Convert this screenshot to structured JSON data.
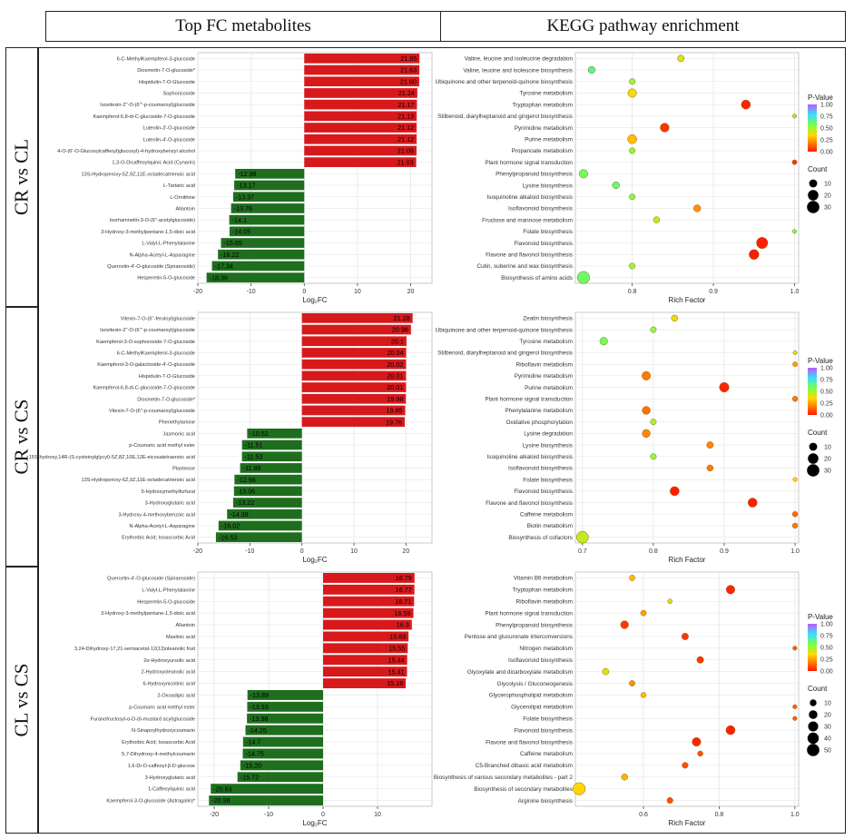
{
  "headers": {
    "left": "Top FC metabolites",
    "right": "KEGG pathway enrichment"
  },
  "rows": [
    "CR vs CL",
    "CR vs CS",
    "CL vs CS"
  ],
  "colors": {
    "up": "#d7191c",
    "down": "#1e6e1e",
    "grid": "#e6e6e6",
    "scale_low": "#ff1a00",
    "scale_mid1": "#ffd700",
    "scale_mid2": "#7fff3f",
    "scale_mid3": "#38e0ff",
    "scale_high": "#b55cff"
  },
  "chart_data": [
    {
      "type": "bar",
      "id": "fc-cr-cl",
      "orientation": "horizontal",
      "xlabel": "Log₂FC",
      "xlim": [
        -20,
        24
      ],
      "xticks": [
        -20,
        -10,
        0,
        10,
        20
      ],
      "categories": [
        "6-C-MethylKaempferol-3-glucoside",
        "Diosmetin-7-O-glucoside*",
        "Hispidulin-7-O-Glucoside",
        "Sophoricoside",
        "Isovitexin-2''-O-(6'''-p-coumaroyl)glucoside",
        "Kaempferol-6,8-di-C-glucoside-7-O-glucoside",
        "Luteolin-3'-O-glucoside",
        "Luteolin-4'-O-glucoside",
        "4-O-(6'-O-Glucosylcaffeoyl)glucosyl)-4-hydroxybenzyl alcohol",
        "1,3-O-Dicaffeoylquinic Acid (Cynarin)",
        "13S-Hydroperoxy-5Z,9Z,11E-octadecatrienoic acid",
        "L-Tartaric acid",
        "L-Ornithine",
        "Allantoin",
        "Isorhamnetin-3-O-(6''-acetylglucoside)",
        "3-Hydroxy-3-methylpentane-1,5-dioic acid",
        "L-Valyl-L-Phenylalanine",
        "N-Alpha-Acetyl-L-Asparagine",
        "Quercetin-4'-O-glucoside (Spiraeoside)",
        "Hesperetin-5-O-glucoside"
      ],
      "values": [
        21.65,
        21.63,
        21.6,
        21.24,
        21.17,
        21.13,
        21.12,
        21.12,
        21.09,
        21.03,
        -12.98,
        -13.17,
        -13.37,
        -13.76,
        -14.1,
        -14.05,
        -15.65,
        -16.22,
        -17.34,
        -18.36
      ],
      "labels": [
        "21.65",
        "21.63",
        "21.60",
        "21.24",
        "21.17",
        "21.13",
        "21.12",
        "21.12",
        "21.09",
        "21.03",
        "-12.98",
        "-13.17",
        "-13.37",
        "-13.76",
        "-14.1",
        "-14.05",
        "-15.65",
        "-16.22",
        "-17.34",
        "-18.36"
      ]
    },
    {
      "type": "bar",
      "id": "fc-cr-cs",
      "orientation": "horizontal",
      "xlabel": "Log₂FC",
      "xlim": [
        -20,
        25
      ],
      "xticks": [
        -20,
        -10,
        0,
        10,
        20
      ],
      "categories": [
        "Vitexin-7-O-(6''-feruloyl)glucoside",
        "Isovitexin-2''-O-(6'''-p-coumaroyl)glucoside",
        "Kaempferol-3-O-sophoroside-7-O-glucoside",
        "6-C-MethylKaempferol-3-glucoside",
        "Kaempferol-3-O-galactoside-4'-O-glucoside",
        "Hispidulin-7-O-Glucoside",
        "Kaempferol-6,8-di-C-glucoside-7-O-glucoside",
        "Diosmetin-7-O-glucoside*",
        "Vitexin-7-O-(6''-p-coumaroyl)glucoside",
        "Phenethylamine",
        "Jasmonic acid",
        "p-Coumaric acid methyl ester",
        "15S-hydroxy,14R-(S-cysteinylglycyl)-5Z,8Z,10E,12E-eicosatetraenoic acid",
        "Planteose",
        "13S-Hydroperoxy-6Z,9Z,11E-octadecatrienoic acid",
        "5-Hydroxymethylfurfural",
        "3-Hydroxyglutaric acid",
        "3-Hydroxy-4-methoxybenzoic acid",
        "N-Alpha-Acetyl-L-Asparagine",
        "Erythorbic Acid; Isoascorbic Acid"
      ],
      "values": [
        21.28,
        20.96,
        20.1,
        20.04,
        20.02,
        20.01,
        20.01,
        19.98,
        19.85,
        19.76,
        -10.52,
        -11.51,
        -11.53,
        -11.88,
        -12.96,
        -13.06,
        -13.22,
        -14.38,
        -16.02,
        -16.53
      ],
      "labels": [
        "21.28",
        "20.96",
        "20.1",
        "20.04",
        "20.02",
        "20.01",
        "20.01",
        "19.98",
        "19.85",
        "19.76",
        "-10.52",
        "-11.51",
        "-11.53",
        "-11.88",
        "-12.96",
        "-13.06",
        "-13.22",
        "-14.38",
        "-16.02",
        "-16.53"
      ]
    },
    {
      "type": "bar",
      "id": "fc-cl-cs",
      "orientation": "horizontal",
      "xlabel": "Log₂FC",
      "xlim": [
        -23,
        20
      ],
      "xticks": [
        -20,
        -10,
        0,
        10
      ],
      "categories": [
        "Quercetin-4'-O-glucoside (Spiraeoside)",
        "L-Valyl-L-Phenylalanine",
        "Hesperetin-5-O-glucoside",
        "3-Hydroxy-3-methylpentane-1,5-dioic acid",
        "Allantoin",
        "Maslinic acid",
        "3,24-Dihydroxy-17,21-semiacetal-12(13)oleanolic fruit",
        "2α-Hydroxyursolic acid",
        "2-Hydroxyoleanolic acid",
        "6-Hydroxynicotinic acid",
        "2-Oxoadipic acid",
        "p-Coumaric acid methyl ester",
        "Furanofructosyl-α-D-(6-mustard acyl)glucoside",
        "N-Sinapoylhydroxycoumarin",
        "Erythorbic Acid; Isoascorbic Acid",
        "5,7-Dihydroxy-4-methylcoumarin",
        "1,6-Di-O-caffeoyl-β-D-glucose",
        "3-Hydroxyglutaric acid",
        "1-Caffeoylquinic acid",
        "Kaempferol-3-O-glucoside (Astragalin)*"
      ],
      "values": [
        16.79,
        16.77,
        16.71,
        16.59,
        16.3,
        15.69,
        15.55,
        15.44,
        15.41,
        15.18,
        -13.89,
        -13.93,
        -13.98,
        -14.25,
        -14.7,
        -14.75,
        -15.2,
        -15.72,
        -20.63,
        -20.96
      ],
      "labels": [
        "16.79",
        "16.77",
        "16.71",
        "16.59",
        "16.3",
        "15.69",
        "15.55",
        "15.44",
        "15.41",
        "15.18",
        "-13.89",
        "-13.93",
        "-13.98",
        "-14.25",
        "-14.7",
        "-14.75",
        "-15.20",
        "-15.72",
        "-20.63",
        "-20.96"
      ]
    },
    {
      "type": "scatter",
      "id": "kegg-cr-cl",
      "xlabel": "Rich Factor",
      "xlim": [
        0.73,
        1.005
      ],
      "xticks": [
        0.8,
        0.9,
        1.0
      ],
      "xtick_labels": [
        "0.8",
        "0.9",
        "1.0"
      ],
      "legend": {
        "color_title": "P-Value",
        "color_ticks": [
          "1.00",
          "0.75",
          "0.50",
          "0.25",
          "0.00"
        ],
        "size_title": "Count",
        "size_ticks": [
          10,
          20,
          30
        ]
      },
      "pathways": [
        "Valine, leucine and isoleucine degradation",
        "Valine, leucine and isoleucine biosynthesis",
        "Ubiquinone and other terpenoid-quinone biosynthesis",
        "Tyrosine metabolism",
        "Tryptophan metabolism",
        "Stilbenoid, diarylheptanoid and gingerol biosynthesis",
        "Pyrimidine metabolism",
        "Purine metabolism",
        "Propanoate metabolism",
        "Plant hormone signal transduction",
        "Phenylpropanoid biosynthesis",
        "Lysine biosynthesis",
        "Isoquinoline alkaloid biosynthesis",
        "Isoflavonoid biosynthesis",
        "Fructose and mannose metabolism",
        "Folate biosynthesis",
        "Flavonoid biosynthesis",
        "Flavone and flavonol biosynthesis",
        "Cutin, suberine and wax biosynthesis",
        "Biosynthesis of amino acids"
      ],
      "rich_factor": [
        0.86,
        0.75,
        0.8,
        0.8,
        0.94,
        1.0,
        0.84,
        0.8,
        0.8,
        1.0,
        0.74,
        0.78,
        0.8,
        0.88,
        0.83,
        1.0,
        0.96,
        0.95,
        0.8,
        0.74
      ],
      "count": [
        6,
        7,
        4,
        12,
        14,
        1,
        13,
        14,
        4,
        2,
        12,
        7,
        4,
        7,
        5,
        1,
        24,
        17,
        4,
        30
      ],
      "p_value": [
        0.42,
        0.65,
        0.5,
        0.36,
        0.02,
        0.5,
        0.05,
        0.3,
        0.52,
        0.05,
        0.58,
        0.62,
        0.55,
        0.22,
        0.45,
        0.55,
        0.01,
        0.01,
        0.5,
        0.6
      ]
    },
    {
      "type": "scatter",
      "id": "kegg-cr-cs",
      "xlabel": "Rich Factor",
      "xlim": [
        0.69,
        1.005
      ],
      "xticks": [
        0.7,
        0.8,
        0.9,
        1.0
      ],
      "xtick_labels": [
        "0.7",
        "0.8",
        "0.9",
        "1.0"
      ],
      "legend": {
        "color_title": "P-Value",
        "color_ticks": [
          "1.00",
          "0.75",
          "0.50",
          "0.25",
          "0.00"
        ],
        "size_title": "Count",
        "size_ticks": [
          10,
          20,
          30
        ]
      },
      "pathways": [
        "Zeatin biosynthesis",
        "Ubiquinone and other terpenoid-quinone biosynthesis",
        "Tyrosine metabolism",
        "Stilbenoid, diarylheptanoid and gingerol biosynthesis",
        "Riboflavin metabolism",
        "Pyrimidine metabolism",
        "Purine metabolism",
        "Plant hormone signal transduction",
        "Phenylalanine metabolism",
        "Oxidative phosphorylation",
        "Lysine degradation",
        "Lysine biosynthesis",
        "Isoquinoline alkaloid biosynthesis",
        "Isoflavonoid biosynthesis",
        "Folate biosynthesis",
        "Flavonoid biosynthesis",
        "Flavone and flavonol biosynthesis",
        "Caffeine metabolism",
        "Biotin metabolism",
        "Biosynthesis of cofactors"
      ],
      "rich_factor": [
        0.83,
        0.8,
        0.73,
        1.0,
        1.0,
        0.79,
        0.9,
        1.0,
        0.79,
        0.8,
        0.79,
        0.88,
        0.8,
        0.88,
        1.0,
        0.83,
        0.94,
        1.0,
        1.0,
        0.7
      ],
      "count": [
        5,
        4,
        9,
        1,
        2,
        12,
        16,
        3,
        10,
        4,
        10,
        6,
        4,
        5,
        1,
        14,
        14,
        3,
        3,
        28
      ],
      "p_value": [
        0.38,
        0.52,
        0.58,
        0.42,
        0.25,
        0.18,
        0.02,
        0.18,
        0.16,
        0.48,
        0.2,
        0.2,
        0.52,
        0.18,
        0.35,
        0.01,
        0.01,
        0.15,
        0.18,
        0.45
      ]
    },
    {
      "type": "scatter",
      "id": "kegg-cl-cs",
      "xlabel": "Rich Factor",
      "xlim": [
        0.42,
        1.01
      ],
      "xticks": [
        0.6,
        0.8,
        1.0
      ],
      "xtick_labels": [
        "0.6",
        "0.8",
        "1.0"
      ],
      "legend": {
        "color_title": "P-Value",
        "color_ticks": [
          "1.00",
          "0.75",
          "0.50",
          "0.25",
          "0.00"
        ],
        "size_title": "Count",
        "size_ticks": [
          10,
          20,
          30,
          40,
          50
        ]
      },
      "pathways": [
        "Vitamin B6 metabolism",
        "Tryptophan metabolism",
        "Riboflavin metabolism",
        "Plant hormone signal transduction",
        "Phenylpropanoid biosynthesis",
        "Pentose and glucuronate interconversions",
        "Nitrogen metabolism",
        "Isoflavonoid biosynthesis",
        "Glyoxylate and dicarboxylate metabolism",
        "Glycolysis / Gluconeogenesis",
        "Glycerophospholipid metabolism",
        "Glycerolipid metabolism",
        "Folate biosynthesis",
        "Flavonoid biosynthesis",
        "Flavone and flavonol biosynthesis",
        "Caffeine metabolism",
        "C5-Branched dibasic acid metabolism",
        "Biosynthesis of various secondary metabolites - part 2",
        "Biosynthesis of secondary metabolites",
        "Arginine biosynthesis"
      ],
      "rich_factor": [
        0.57,
        0.83,
        0.67,
        0.6,
        0.55,
        0.71,
        1.0,
        0.75,
        0.5,
        0.57,
        0.6,
        1.0,
        1.0,
        0.83,
        0.74,
        0.75,
        0.71,
        0.55,
        0.43,
        0.67
      ],
      "count": [
        6,
        20,
        3,
        6,
        16,
        10,
        2,
        10,
        9,
        6,
        5,
        2,
        2,
        23,
        20,
        5,
        7,
        8,
        50,
        7
      ],
      "p_value": [
        0.3,
        0.02,
        0.4,
        0.25,
        0.05,
        0.05,
        0.12,
        0.05,
        0.4,
        0.22,
        0.3,
        0.12,
        0.12,
        0.01,
        0.02,
        0.1,
        0.1,
        0.28,
        0.35,
        0.1
      ]
    }
  ]
}
